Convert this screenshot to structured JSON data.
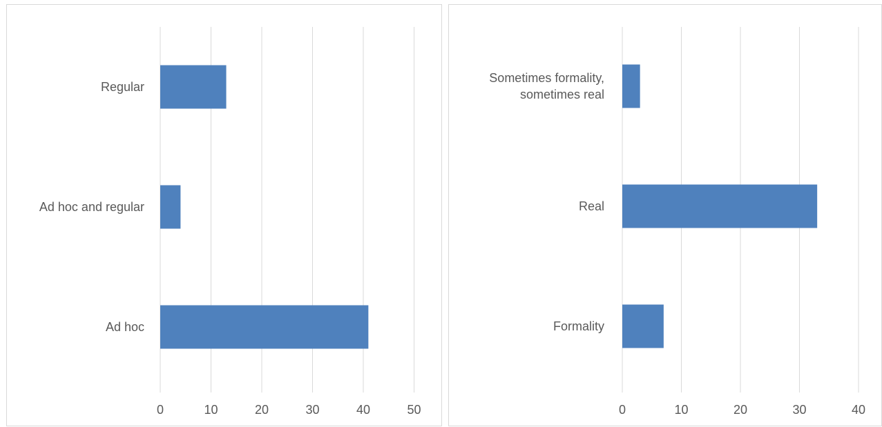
{
  "chart_data": [
    {
      "type": "bar",
      "orientation": "horizontal",
      "categories": [
        "Regular",
        "Ad hoc and regular",
        "Ad hoc"
      ],
      "values": [
        13,
        4,
        41
      ],
      "xlim": [
        0,
        50
      ],
      "xticks": [
        0,
        10,
        20,
        30,
        40,
        50
      ],
      "title": "",
      "xlabel": "",
      "ylabel": "",
      "grid": "vertical",
      "color": "#4f81bd"
    },
    {
      "type": "bar",
      "orientation": "horizontal",
      "categories": [
        "Sometimes formality, sometimes real",
        "Real",
        "Formality"
      ],
      "category_lines": [
        [
          "Sometimes formality,",
          "sometimes real"
        ],
        [
          "Real"
        ],
        [
          "Formality"
        ]
      ],
      "values": [
        3,
        33,
        7
      ],
      "xlim": [
        0,
        40
      ],
      "xticks": [
        0,
        10,
        20,
        30,
        40
      ],
      "title": "",
      "xlabel": "",
      "ylabel": "",
      "grid": "vertical",
      "color": "#4f81bd"
    }
  ]
}
